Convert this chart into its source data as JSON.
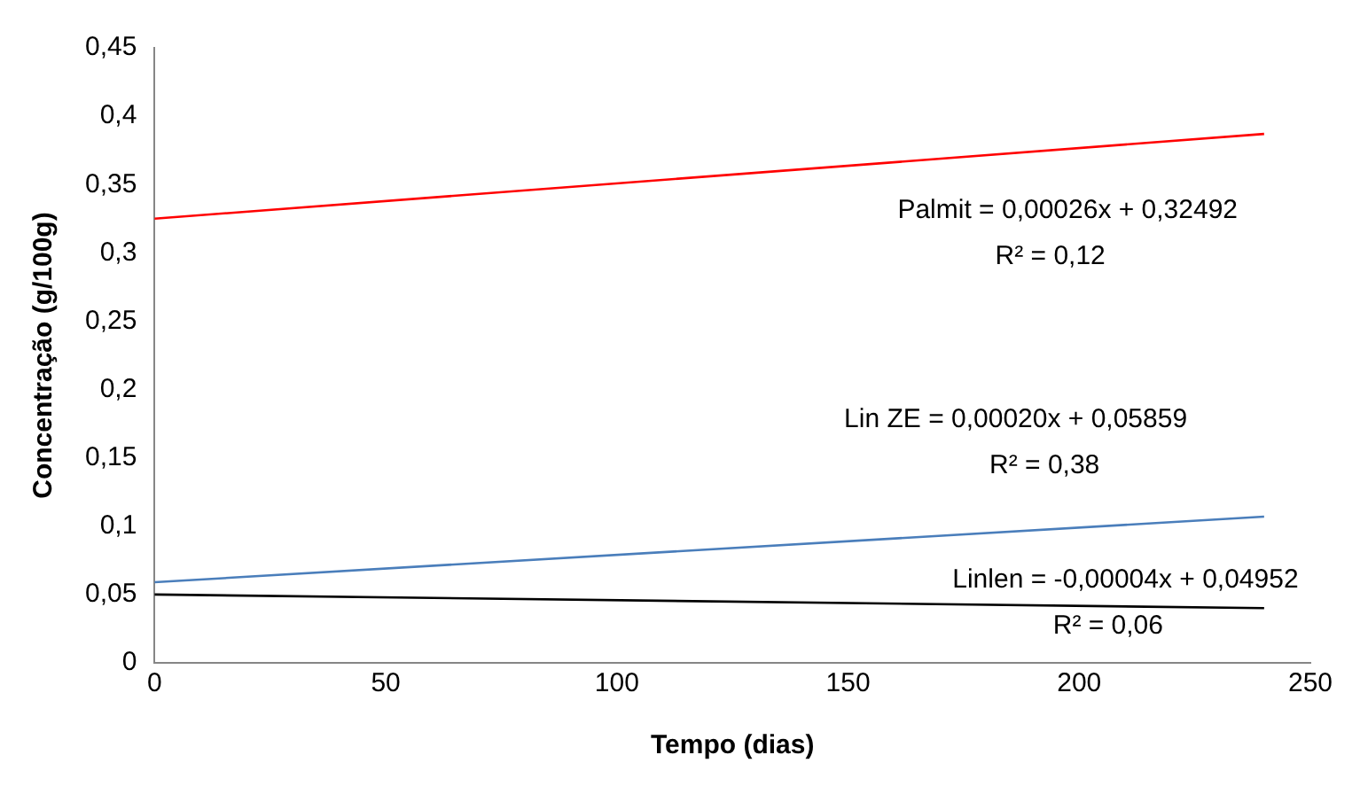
{
  "chart_data": {
    "type": "line",
    "xlabel": "Tempo (dias)",
    "ylabel": "Concentração (g/100g)",
    "xlim": [
      0,
      250
    ],
    "xticks": [
      0,
      50,
      100,
      150,
      200,
      250
    ],
    "ylim": [
      0,
      0.45
    ],
    "yticks": [
      {
        "value": 0,
        "label": "0"
      },
      {
        "value": 0.05,
        "label": "0,05"
      },
      {
        "value": 0.1,
        "label": "0,1"
      },
      {
        "value": 0.15,
        "label": "0,15"
      },
      {
        "value": 0.2,
        "label": "0,2"
      },
      {
        "value": 0.25,
        "label": "0,25"
      },
      {
        "value": 0.3,
        "label": "0,3"
      },
      {
        "value": 0.35,
        "label": "0,35"
      },
      {
        "value": 0.4,
        "label": "0,4"
      },
      {
        "value": 0.45,
        "label": "0,45"
      }
    ],
    "x": [
      0,
      240
    ],
    "grid": false,
    "legend": false,
    "marker": "none",
    "line_style": "solid",
    "series": [
      {
        "color": "#ff0000",
        "values": [
          0.325,
          0.387
        ]
      },
      {
        "color": "#4a7ebb",
        "values": [
          0.059,
          0.107
        ]
      },
      {
        "color": "#000000",
        "values": [
          0.05,
          0.04
        ]
      }
    ],
    "annotations": [
      "Palmit = 0,00026x + 0,32492",
      "R² = 0,12",
      "Lin ZE = 0,00020x + 0,05859",
      "R² = 0,38",
      "Linlen = -0,00004x + 0,04952",
      "R² = 0,06"
    ]
  }
}
